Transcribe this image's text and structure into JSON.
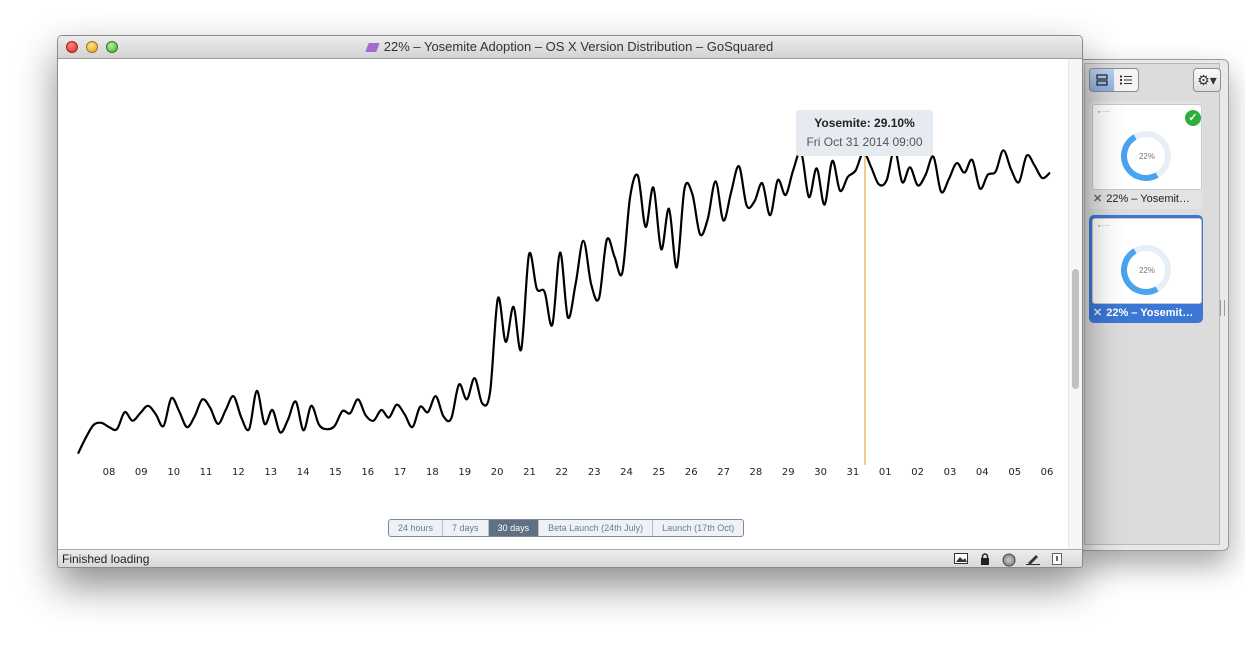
{
  "window": {
    "title": "22% – Yosemite Adoption – OS X Version Distribution – GoSquared",
    "status": "Finished loading"
  },
  "tooltip": {
    "series_value": "Yosemite: 29.10%",
    "date": "Fri Oct 31 2014 09:00"
  },
  "range_buttons": [
    {
      "label": "24 hours",
      "active": false
    },
    {
      "label": "7 days",
      "active": false
    },
    {
      "label": "30 days",
      "active": true
    },
    {
      "label": "Beta Launch (24th July)",
      "active": false
    },
    {
      "label": "Launch (17th Oct)",
      "active": false
    }
  ],
  "drawer": {
    "cards": [
      {
        "label": "22% – Yosemit…",
        "thumb_value": "22%",
        "selected": false,
        "check_icon": "checkmark-icon"
      },
      {
        "label": "22% – Yosemit…",
        "thumb_value": "22%",
        "selected": true
      }
    ]
  },
  "colors": {
    "line": "#000000",
    "highlight": "#e8952c",
    "tooltip_bg": "#e6ebf1",
    "active_button": "#5f7180",
    "selected_card": "#3b78d6"
  },
  "chart_data": {
    "type": "line",
    "x_tick_labels": [
      "08",
      "09",
      "10",
      "11",
      "12",
      "13",
      "14",
      "15",
      "16",
      "17",
      "18",
      "19",
      "20",
      "21",
      "22",
      "23",
      "24",
      "25",
      "26",
      "27",
      "28",
      "29",
      "30",
      "31",
      "01",
      "02",
      "03",
      "04",
      "05",
      "06"
    ],
    "series": [
      {
        "name": "Yosemite",
        "values": [
          0.5,
          2,
          3.2,
          3.4,
          3.0,
          2.8,
          4.4,
          3.6,
          4.3,
          5.0,
          4.2,
          3.1,
          5.7,
          4.5,
          3.0,
          4.0,
          5.6,
          4.8,
          3.3,
          4.6,
          5.9,
          3.9,
          2.8,
          6.4,
          3.3,
          4.6,
          2.5,
          3.7,
          5.4,
          2.7,
          5.0,
          3.2,
          2.8,
          3.1,
          4.5,
          4.3,
          5.6,
          4.1,
          3.6,
          4.6,
          3.9,
          5.1,
          4.2,
          3.0,
          4.9,
          4.4,
          5.9,
          4.0,
          3.8,
          7.0,
          5.6,
          7.6,
          5.2,
          6.3,
          15.1,
          11.0,
          14.3,
          10.3,
          19.2,
          16.0,
          15.7,
          12.6,
          19.4,
          13.3,
          16.5,
          20.5,
          16.4,
          15.1,
          20.6,
          19.0,
          17.5,
          24.6,
          26.6,
          21.8,
          25.5,
          19.7,
          23.5,
          18.0,
          25.4,
          24.9,
          21.1,
          22.6,
          26.1,
          22.4,
          25.1,
          27.5,
          23.8,
          24.2,
          25.9,
          22.9,
          26.2,
          24.8,
          27.2,
          28.8,
          24.6,
          27.3,
          23.9,
          28.0,
          25.2,
          26.5,
          27.1,
          28.8,
          27.4,
          25.8,
          26.2,
          29.1,
          26.0,
          27.4,
          25.7,
          26.7,
          28.4,
          25.1,
          26.3,
          27.8,
          26.9,
          28.1,
          25.4,
          26.7,
          27.0,
          29.0,
          27.2,
          26.0,
          28.5,
          27.6,
          26.4,
          26.9
        ]
      }
    ],
    "highlight": {
      "x_label": "31",
      "value": 29.1,
      "series": "Yosemite"
    },
    "grid": false,
    "legend": "none"
  }
}
